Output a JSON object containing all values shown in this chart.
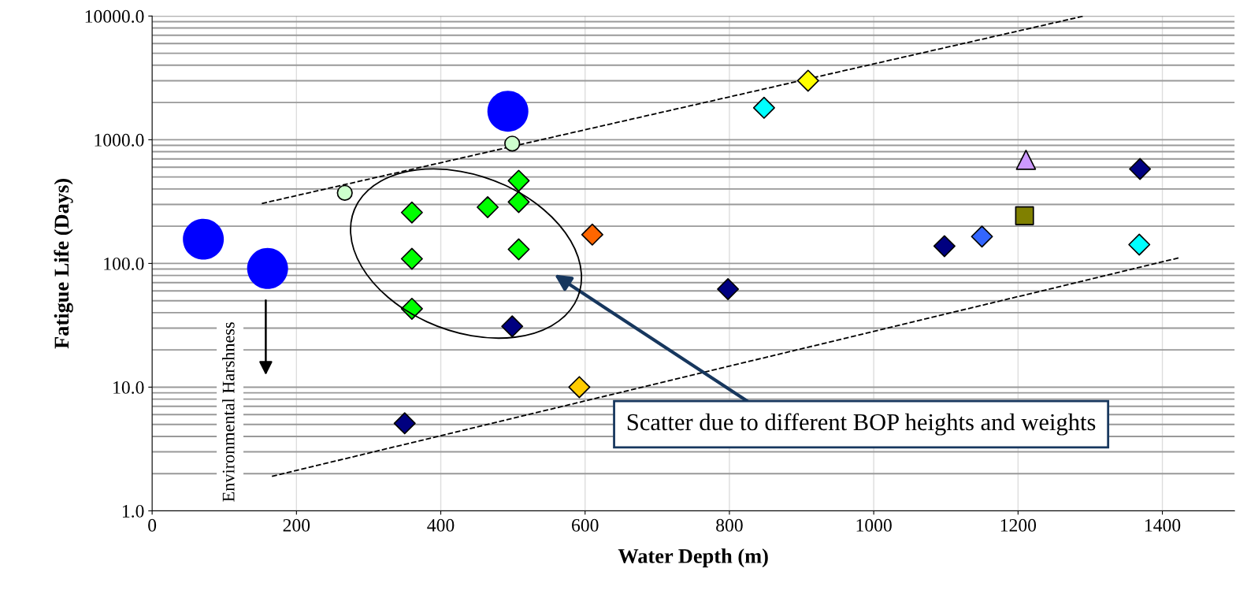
{
  "chart_data": {
    "type": "scatter",
    "xlabel": "Water Depth (m)",
    "ylabel": "Fatigue Life (Days)",
    "log": "y",
    "grid": true,
    "xlim": [
      0,
      1500
    ],
    "xticks": [
      0,
      200,
      400,
      600,
      800,
      1000,
      1200,
      1400
    ],
    "ylim": [
      1,
      10000
    ],
    "yticks": [
      {
        "value": 1,
        "label": "1.0"
      },
      {
        "value": 10,
        "label": "10.0"
      },
      {
        "value": 100,
        "label": "100.0"
      },
      {
        "value": 1000,
        "label": "1000.0"
      },
      {
        "value": 10000,
        "label": "10000.0"
      }
    ],
    "annotations": [
      "Environmental Harshness",
      "Scatter due to different BOP heights and weights"
    ],
    "series": [
      {
        "type": "bubble",
        "color": "#0000ff",
        "marker": "circle",
        "x": [
          71,
          160,
          493
        ],
        "values": [
          157,
          91,
          1700
        ],
        "sizes": [
          1,
          1,
          1
        ]
      },
      {
        "color": "#ccffcc",
        "marker": "circle",
        "x": [
          267,
          499
        ],
        "values": [
          372,
          930
        ]
      },
      {
        "color": "#00ff00",
        "marker": "diamond",
        "x": [
          360,
          360,
          360,
          465,
          508,
          508,
          508
        ],
        "values": [
          258,
          109,
          43,
          285,
          466,
          314,
          130
        ]
      },
      {
        "color": "#ff6600",
        "marker": "diamond",
        "x": [
          610
        ],
        "values": [
          171
        ]
      },
      {
        "color": "#000080",
        "marker": "diamond",
        "x": [
          499,
          350,
          798,
          1098,
          1369
        ],
        "values": [
          31,
          5.1,
          62,
          138,
          580
        ]
      },
      {
        "color": "#ffcc00",
        "marker": "diamond",
        "x": [
          592
        ],
        "values": [
          10
        ]
      },
      {
        "color": "#ffff00",
        "marker": "diamond",
        "x": [
          909
        ],
        "values": [
          3000
        ]
      },
      {
        "color": "#00ffff",
        "marker": "diamond",
        "x": [
          848,
          1368
        ],
        "values": [
          1812,
          142
        ]
      },
      {
        "color": "#cc99ff",
        "marker": "triangle",
        "x": [
          1211
        ],
        "values": [
          689
        ]
      },
      {
        "color": "#808000",
        "marker": "square",
        "x": [
          1209
        ],
        "values": [
          243
        ]
      },
      {
        "color": "#3366ff",
        "marker": "diamond",
        "x": [
          1150
        ],
        "values": [
          165
        ]
      },
      {
        "type": "line",
        "color": "#000000",
        "line_style": "dashed",
        "x": [
          152,
          1291
        ],
        "values": [
          305,
          10000
        ]
      },
      {
        "type": "line",
        "color": "#000000",
        "line_style": "dashed",
        "x": [
          166,
          1423
        ],
        "values": [
          1.9,
          111
        ]
      }
    ]
  }
}
